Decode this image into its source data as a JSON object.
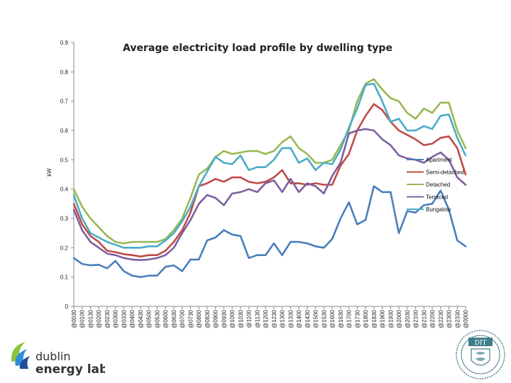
{
  "chart_data": {
    "type": "line",
    "title": "Average electricity load profile by dwelling type",
    "ylabel": "kW",
    "xlabel": "",
    "ylim": [
      0,
      0.9
    ],
    "yticks": [
      "0",
      "0.1",
      "0.2",
      "0.3",
      "0.4",
      "0.5",
      "0.6",
      "0.7",
      "0.8",
      "0.9"
    ],
    "grid": false,
    "legend_position": "right",
    "categories": [
      "@0030",
      "@0100",
      "@0130",
      "@0200",
      "@0230",
      "@0300",
      "@0330",
      "@0400",
      "@0430",
      "@0500",
      "@0530",
      "@0600",
      "@0630",
      "@0700",
      "@0730",
      "@0800",
      "@0830",
      "@0900",
      "@0930",
      "@1000",
      "@1030",
      "@1100",
      "@1130",
      "@1200",
      "@1230",
      "@1300",
      "@1330",
      "@1400",
      "@1430",
      "@1500",
      "@1530",
      "@1600",
      "@1630",
      "@1700",
      "@1730",
      "@1800",
      "@1830",
      "@1900",
      "@1930",
      "@2000",
      "@2030",
      "@2100",
      "@2130",
      "@2200",
      "@2230",
      "@2300",
      "@2330",
      "@0000"
    ],
    "series": [
      {
        "name": "Apartment",
        "color": "#4a7ebb",
        "values": [
          0.165,
          0.145,
          0.14,
          0.142,
          0.13,
          0.155,
          0.12,
          0.105,
          0.1,
          0.105,
          0.105,
          0.135,
          0.14,
          0.12,
          0.16,
          0.16,
          0.225,
          0.235,
          0.26,
          0.245,
          0.24,
          0.165,
          0.175,
          0.175,
          0.215,
          0.175,
          0.22,
          0.22,
          0.215,
          0.205,
          0.2,
          0.23,
          0.3,
          0.355,
          0.28,
          0.295,
          0.41,
          0.39,
          0.39,
          0.25,
          0.325,
          0.32,
          0.345,
          0.35,
          0.395,
          0.33,
          0.225,
          0.205
        ]
      },
      {
        "name": "Semi-detached",
        "color": "#be4b48",
        "values": [
          0.35,
          0.28,
          0.24,
          0.22,
          0.19,
          0.185,
          0.178,
          0.175,
          0.17,
          0.175,
          0.175,
          0.19,
          0.22,
          0.26,
          0.32,
          0.41,
          0.42,
          0.435,
          0.425,
          0.44,
          0.44,
          0.425,
          0.42,
          0.425,
          0.44,
          0.465,
          0.42,
          0.42,
          0.415,
          0.42,
          0.415,
          0.415,
          0.48,
          0.52,
          0.6,
          0.65,
          0.69,
          0.67,
          0.63,
          0.6,
          0.585,
          0.57,
          0.55,
          0.555,
          0.575,
          0.58,
          0.54,
          0.45
        ]
      },
      {
        "name": "Detached",
        "color": "#98b954",
        "values": [
          0.4,
          0.34,
          0.3,
          0.27,
          0.24,
          0.22,
          0.215,
          0.22,
          0.22,
          0.22,
          0.22,
          0.23,
          0.26,
          0.3,
          0.37,
          0.45,
          0.47,
          0.51,
          0.53,
          0.52,
          0.525,
          0.53,
          0.53,
          0.52,
          0.53,
          0.56,
          0.58,
          0.54,
          0.52,
          0.49,
          0.49,
          0.5,
          0.55,
          0.6,
          0.7,
          0.76,
          0.775,
          0.74,
          0.71,
          0.7,
          0.66,
          0.64,
          0.675,
          0.66,
          0.695,
          0.695,
          0.6,
          0.54
        ]
      },
      {
        "name": "Terraced",
        "color": "#7d60a0",
        "values": [
          0.33,
          0.26,
          0.22,
          0.2,
          0.18,
          0.175,
          0.165,
          0.16,
          0.158,
          0.16,
          0.165,
          0.175,
          0.2,
          0.25,
          0.295,
          0.35,
          0.38,
          0.37,
          0.345,
          0.385,
          0.39,
          0.4,
          0.39,
          0.42,
          0.43,
          0.39,
          0.435,
          0.39,
          0.42,
          0.41,
          0.385,
          0.445,
          0.49,
          0.59,
          0.6,
          0.605,
          0.6,
          0.57,
          0.55,
          0.515,
          0.505,
          0.5,
          0.49,
          0.51,
          0.525,
          0.5,
          0.44,
          0.415
        ]
      },
      {
        "name": "Bungalow",
        "color": "#4aacc6",
        "values": [
          0.38,
          0.3,
          0.25,
          0.235,
          0.22,
          0.21,
          0.2,
          0.2,
          0.2,
          0.205,
          0.205,
          0.225,
          0.25,
          0.29,
          0.34,
          0.41,
          0.46,
          0.51,
          0.49,
          0.485,
          0.515,
          0.465,
          0.475,
          0.475,
          0.5,
          0.54,
          0.54,
          0.49,
          0.505,
          0.465,
          0.49,
          0.485,
          0.535,
          0.61,
          0.675,
          0.755,
          0.76,
          0.7,
          0.63,
          0.64,
          0.6,
          0.6,
          0.615,
          0.605,
          0.65,
          0.655,
          0.575,
          0.515
        ]
      }
    ]
  },
  "logos": {
    "left_line1": "dublin",
    "left_line2": "energy lab.",
    "right_text": "DIT"
  }
}
